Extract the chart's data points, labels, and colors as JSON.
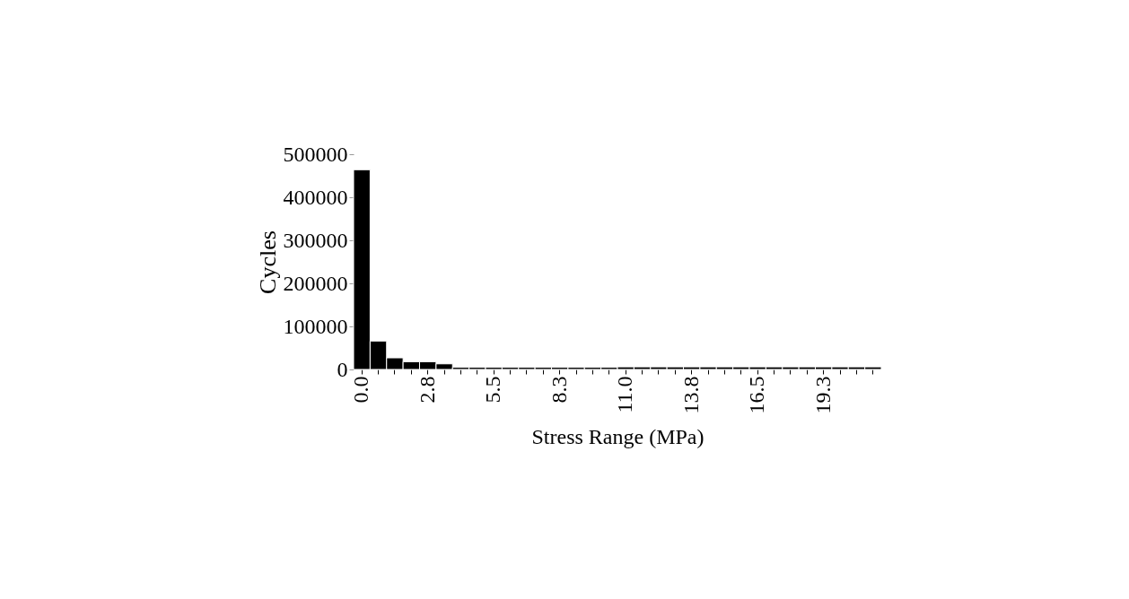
{
  "chart_data": {
    "type": "bar",
    "xlabel": "Stress Range (MPa)",
    "ylabel": "Cycles",
    "categories": [
      "0.0",
      null,
      null,
      null,
      "2.8",
      null,
      null,
      null,
      "5.5",
      null,
      null,
      null,
      "8.3",
      null,
      null,
      null,
      "11.0",
      null,
      null,
      null,
      "13.8",
      null,
      null,
      null,
      "16.5",
      null,
      null,
      null,
      "19.3",
      null,
      null,
      null
    ],
    "values": [
      464000,
      66000,
      27000,
      18000,
      18000,
      13000,
      5000,
      5000,
      5000,
      5000,
      5000,
      5000,
      5000,
      5000,
      5000,
      5000,
      6000,
      6000,
      6000,
      6000,
      6000,
      6000,
      6000,
      6000,
      6000,
      6000,
      6000,
      6000,
      6000,
      6000,
      6000,
      6000
    ],
    "color": "#000000",
    "ylim": [
      0,
      500000
    ],
    "yticks": [
      0,
      100000,
      200000,
      300000,
      400000,
      500000
    ],
    "grid": false
  }
}
